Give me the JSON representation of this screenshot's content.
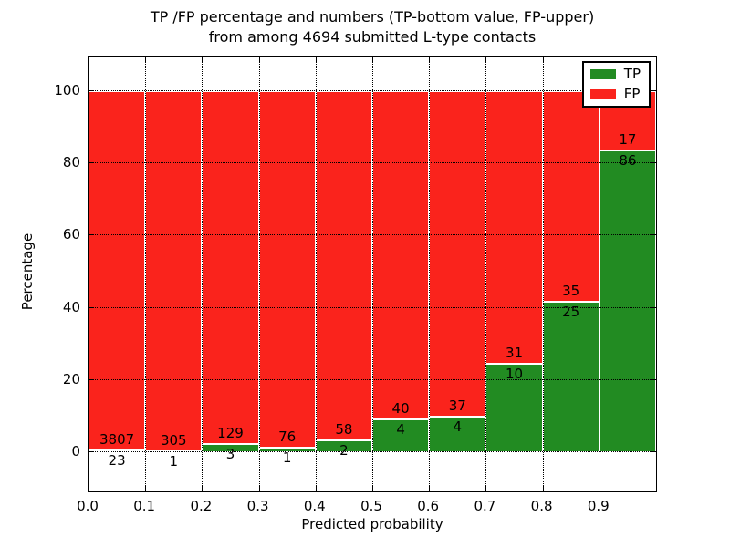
{
  "title": {
    "line1": "TP /FP percentage and numbers (TP-bottom value, FP-upper)",
    "line2": "from among 4694 submitted L-type contacts"
  },
  "chart_data": {
    "type": "bar",
    "stacked": true,
    "normalized_to": 100,
    "title": "TP /FP percentage and numbers (TP-bottom value, FP-upper) from among 4694 submitted L-type contacts",
    "total_submitted": 4694,
    "xlabel": "Predicted probability",
    "ylabel": "Percentage",
    "x_tick_labels": [
      "0.0",
      "0.1",
      "0.2",
      "0.3",
      "0.4",
      "0.5",
      "0.6",
      "0.7",
      "0.8",
      "0.9"
    ],
    "y_tick_values": [
      0,
      20,
      40,
      60,
      80,
      100
    ],
    "xlim": [
      0.0,
      1.0
    ],
    "ylim": [
      -10.8,
      109.6
    ],
    "grid": "dotted black, horizontal at y ticks and vertical at x ticks",
    "legend_position": "upper right",
    "series": [
      {
        "name": "TP",
        "color": "#228b22"
      },
      {
        "name": "FP",
        "color": "#fa231c"
      }
    ],
    "bins": [
      {
        "x0": 0.0,
        "x1": 0.1,
        "tp": 23,
        "fp": 3807,
        "tp_pct": 0.6
      },
      {
        "x0": 0.1,
        "x1": 0.2,
        "tp": 1,
        "fp": 305,
        "tp_pct": 0.33
      },
      {
        "x0": 0.2,
        "x1": 0.3,
        "tp": 3,
        "fp": 129,
        "tp_pct": 2.27
      },
      {
        "x0": 0.3,
        "x1": 0.4,
        "tp": 1,
        "fp": 76,
        "tp_pct": 1.3
      },
      {
        "x0": 0.4,
        "x1": 0.5,
        "tp": 2,
        "fp": 58,
        "tp_pct": 3.33
      },
      {
        "x0": 0.5,
        "x1": 0.6,
        "tp": 4,
        "fp": 40,
        "tp_pct": 9.09
      },
      {
        "x0": 0.6,
        "x1": 0.7,
        "tp": 4,
        "fp": 37,
        "tp_pct": 9.76
      },
      {
        "x0": 0.7,
        "x1": 0.8,
        "tp": 10,
        "fp": 31,
        "tp_pct": 24.39
      },
      {
        "x0": 0.8,
        "x1": 0.9,
        "tp": 25,
        "fp": 35,
        "tp_pct": 41.67
      },
      {
        "x0": 0.9,
        "x1": 1.0,
        "tp": 86,
        "fp": 17,
        "tp_pct": 83.5
      }
    ]
  }
}
